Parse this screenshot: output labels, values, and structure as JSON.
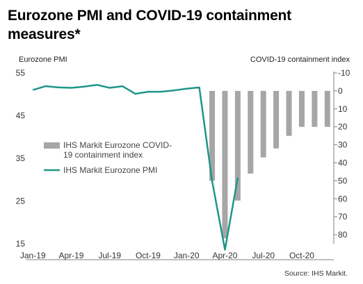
{
  "title": "Eurozone PMI and COVID-19 containment measures*",
  "source": "Source: IHS Markit.",
  "colors": {
    "pmi_line": "#1e9688",
    "bars": "#a6a6a6",
    "axis": "#7f7f7f"
  },
  "chart_data": {
    "type": "bar+line",
    "title": "Eurozone PMI and COVID-19 containment measures*",
    "left_axis": {
      "label": "Eurozone PMI",
      "ylim": [
        15,
        55
      ],
      "ticks": [
        15,
        25,
        35,
        45,
        55
      ]
    },
    "right_axis": {
      "label": "COVID-19 containment index",
      "ylim": [
        -10,
        85
      ],
      "inverted": true,
      "ticks": [
        -10,
        0,
        10,
        20,
        30,
        40,
        50,
        60,
        70,
        80
      ]
    },
    "x": [
      "Jan-19",
      "Feb-19",
      "Mar-19",
      "Apr-19",
      "May-19",
      "Jun-19",
      "Jul-19",
      "Aug-19",
      "Sep-19",
      "Oct-19",
      "Nov-19",
      "Dec-19",
      "Jan-20",
      "Feb-20",
      "Mar-20",
      "Apr-20",
      "May-20",
      "Jun-20",
      "Jul-20",
      "Aug-20",
      "Sep-20",
      "Oct-20",
      "Nov-20",
      "Dec-20"
    ],
    "x_tick_labels": [
      "Jan-19",
      "Apr-19",
      "Jul-19",
      "Oct-19",
      "Jan-20",
      "Apr-20",
      "Jul-20",
      "Oct-20"
    ],
    "x_tick_indices": [
      0,
      3,
      6,
      9,
      12,
      15,
      18,
      21
    ],
    "series": [
      {
        "name": "IHS Markit Eurozone COVID-19 containment index",
        "type": "bar",
        "axis": "right",
        "values": [
          null,
          null,
          null,
          null,
          null,
          null,
          null,
          null,
          null,
          null,
          null,
          null,
          null,
          null,
          50,
          82,
          61,
          46,
          37,
          32,
          25,
          20,
          20,
          20
        ]
      },
      {
        "name": "IHS Markit Eurozone PMI",
        "type": "line",
        "axis": "left",
        "values": [
          51.0,
          51.9,
          51.6,
          51.5,
          51.8,
          52.2,
          51.5,
          51.9,
          50.1,
          50.6,
          50.6,
          50.9,
          51.3,
          51.6,
          29.7,
          13.6,
          30.5,
          null,
          null,
          null,
          null,
          null,
          null,
          null
        ]
      }
    ],
    "legend": [
      "IHS Markit Eurozone COVID-19 containment index",
      "IHS Markit Eurozone PMI"
    ],
    "legend_lines": [
      [
        "IHS Markit Eurozone COVID-",
        "19 containment index"
      ],
      [
        "IHS Markit Eurozone PMI"
      ]
    ],
    "legend_position": "left-middle",
    "grid": false
  }
}
